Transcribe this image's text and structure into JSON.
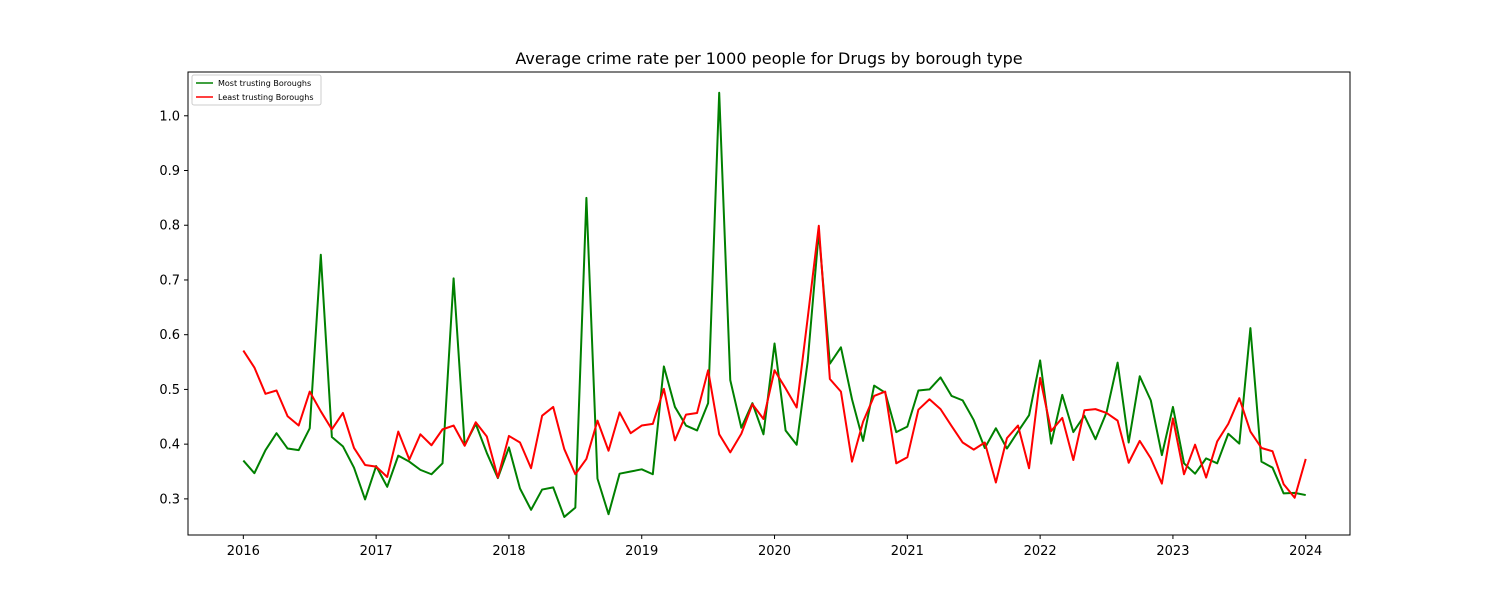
{
  "chart_data": {
    "type": "line",
    "title": "Average crime rate per 1000 people for Drugs by borough type",
    "xlabel": "",
    "ylabel": "",
    "x_start": "2016-01",
    "x_frequency": "monthly",
    "x_ticks": [
      "2016",
      "2017",
      "2018",
      "2019",
      "2020",
      "2021",
      "2022",
      "2023",
      "2024"
    ],
    "y_ticks": [
      0.3,
      0.4,
      0.5,
      0.6,
      0.7,
      0.8,
      0.9,
      1.0
    ],
    "xlim": [
      "2015-08",
      "2024-05"
    ],
    "ylim": [
      0.234,
      1.08
    ],
    "grid": false,
    "legend": "top-left",
    "series": [
      {
        "name": "Most trusting Boroughs",
        "color": "#008000",
        "values": [
          0.37,
          0.347,
          0.389,
          0.42,
          0.392,
          0.389,
          0.429,
          0.746,
          0.413,
          0.396,
          0.357,
          0.299,
          0.36,
          0.322,
          0.379,
          0.368,
          0.353,
          0.345,
          0.365,
          0.703,
          0.398,
          0.437,
          0.384,
          0.338,
          0.394,
          0.319,
          0.28,
          0.317,
          0.321,
          0.267,
          0.284,
          0.85,
          0.337,
          0.272,
          0.346,
          0.35,
          0.354,
          0.345,
          0.542,
          0.468,
          0.434,
          0.425,
          0.475,
          1.042,
          0.517,
          0.43,
          0.475,
          0.418,
          0.584,
          0.425,
          0.399,
          0.552,
          0.788,
          0.547,
          0.577,
          0.482,
          0.406,
          0.507,
          0.494,
          0.422,
          0.432,
          0.498,
          0.5,
          0.522,
          0.488,
          0.48,
          0.444,
          0.393,
          0.429,
          0.392,
          0.423,
          0.453,
          0.553,
          0.401,
          0.49,
          0.422,
          0.452,
          0.409,
          0.458,
          0.549,
          0.403,
          0.524,
          0.48,
          0.38,
          0.468,
          0.365,
          0.346,
          0.374,
          0.365,
          0.419,
          0.401,
          0.612,
          0.368,
          0.357,
          0.31,
          0.311,
          0.307
        ]
      },
      {
        "name": "Least trusting Boroughs",
        "color": "#ff0000",
        "values": [
          0.571,
          0.54,
          0.492,
          0.498,
          0.451,
          0.434,
          0.496,
          0.46,
          0.427,
          0.457,
          0.393,
          0.362,
          0.359,
          0.34,
          0.423,
          0.372,
          0.418,
          0.398,
          0.427,
          0.434,
          0.397,
          0.44,
          0.414,
          0.339,
          0.415,
          0.403,
          0.356,
          0.452,
          0.468,
          0.391,
          0.345,
          0.373,
          0.443,
          0.388,
          0.458,
          0.42,
          0.434,
          0.437,
          0.501,
          0.407,
          0.454,
          0.457,
          0.535,
          0.418,
          0.385,
          0.419,
          0.473,
          0.446,
          0.535,
          0.502,
          0.467,
          0.631,
          0.799,
          0.519,
          0.496,
          0.368,
          0.441,
          0.488,
          0.496,
          0.365,
          0.376,
          0.463,
          0.482,
          0.464,
          0.433,
          0.403,
          0.39,
          0.403,
          0.33,
          0.411,
          0.434,
          0.356,
          0.521,
          0.424,
          0.448,
          0.371,
          0.462,
          0.464,
          0.457,
          0.443,
          0.366,
          0.406,
          0.374,
          0.328,
          0.447,
          0.345,
          0.399,
          0.339,
          0.405,
          0.437,
          0.484,
          0.423,
          0.393,
          0.387,
          0.327,
          0.302,
          0.373
        ]
      }
    ]
  }
}
